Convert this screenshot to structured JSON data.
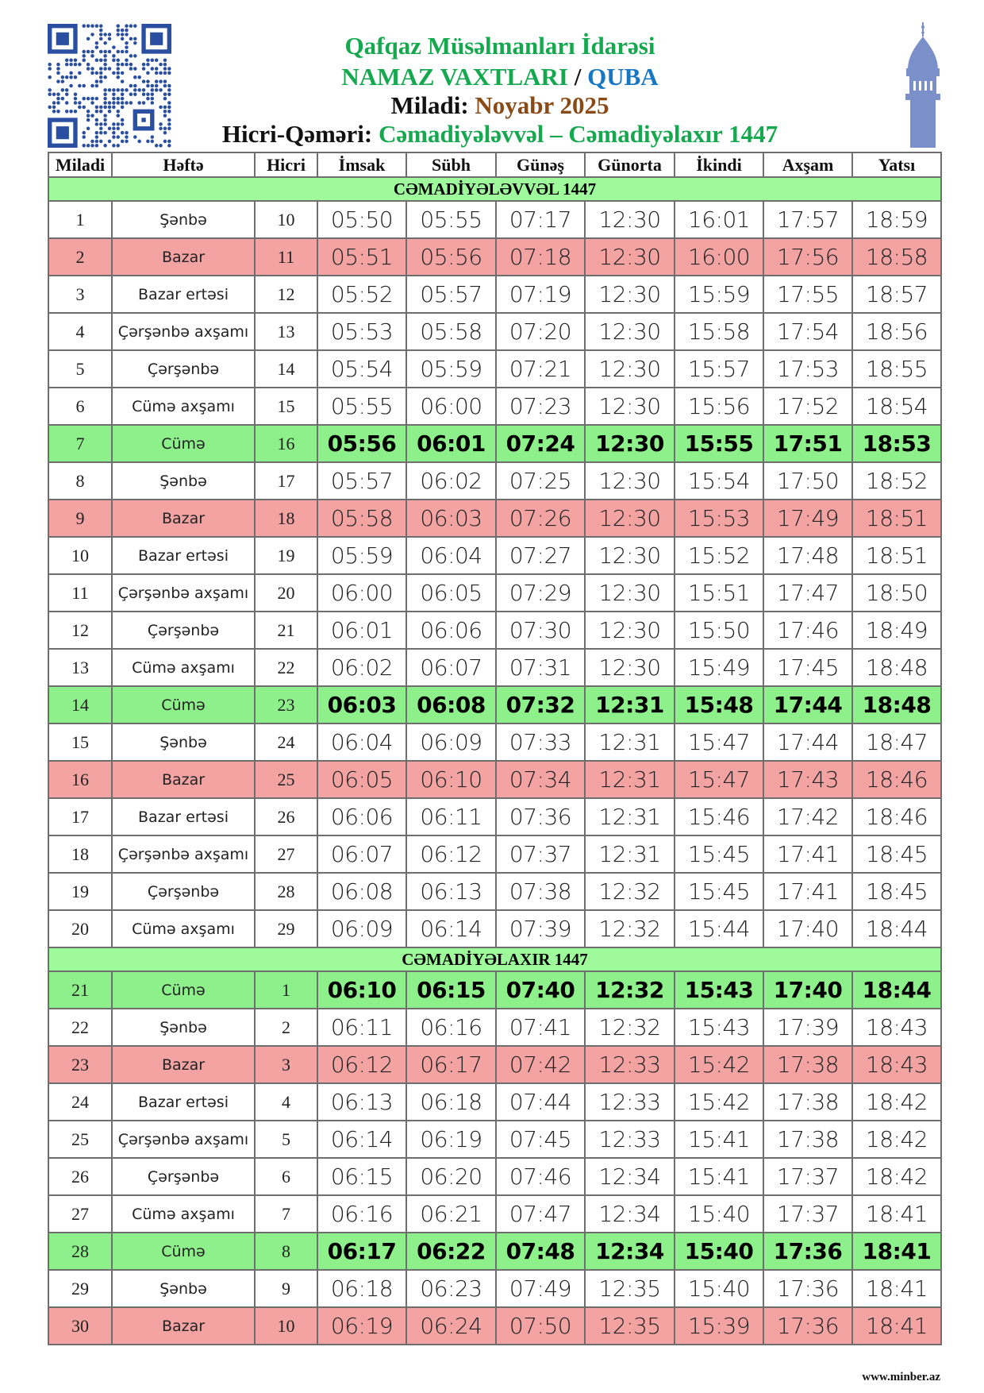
{
  "header": {
    "org": "Qafqaz Müsəlmanları İdarəsi",
    "title": "NAMAZ VAXTLARI",
    "separator": "/",
    "city": "QUBA",
    "miladi_label": "Miladi:",
    "miladi_value": "Noyabr 2025",
    "hicri_label": "Hicri-Qəməri:",
    "hicri_value": "Cəmadiyələvvəl – Cəmadiyəlaxır 1447"
  },
  "colors": {
    "green_row": "#8ef08a",
    "red_row": "#f4a3a3",
    "section": "#9efa9a",
    "accent_green": "#15a84e",
    "accent_blue": "#1877c2",
    "accent_brown": "#8a4a16",
    "qr": "#2a4fa0",
    "minaret": "#7b8fc8"
  },
  "icons": {
    "qr": "qr-code-icon",
    "minaret": "minaret-icon"
  },
  "table": {
    "columns": [
      "Miladi",
      "Həftə",
      "Hicri",
      "İmsak",
      "Sübh",
      "Günəş",
      "Günorta",
      "İkindi",
      "Axşam",
      "Yatsı"
    ],
    "sections": [
      {
        "title": "CƏMADİYƏLƏVVƏL 1447",
        "rows": [
          {
            "cells": [
              "1",
              "Şənbə",
              "10",
              "05:50",
              "05:55",
              "07:17",
              "12:30",
              "16:01",
              "17:57",
              "18:59"
            ],
            "highlight": ""
          },
          {
            "cells": [
              "2",
              "Bazar",
              "11",
              "05:51",
              "05:56",
              "07:18",
              "12:30",
              "16:00",
              "17:56",
              "18:58"
            ],
            "highlight": "sunday"
          },
          {
            "cells": [
              "3",
              "Bazar ertəsi",
              "12",
              "05:52",
              "05:57",
              "07:19",
              "12:30",
              "15:59",
              "17:55",
              "18:57"
            ],
            "highlight": ""
          },
          {
            "cells": [
              "4",
              "Çərşənbə axşamı",
              "13",
              "05:53",
              "05:58",
              "07:20",
              "12:30",
              "15:58",
              "17:54",
              "18:56"
            ],
            "highlight": ""
          },
          {
            "cells": [
              "5",
              "Çərşənbə",
              "14",
              "05:54",
              "05:59",
              "07:21",
              "12:30",
              "15:57",
              "17:53",
              "18:55"
            ],
            "highlight": ""
          },
          {
            "cells": [
              "6",
              "Cümə axşamı",
              "15",
              "05:55",
              "06:00",
              "07:23",
              "12:30",
              "15:56",
              "17:52",
              "18:54"
            ],
            "highlight": ""
          },
          {
            "cells": [
              "7",
              "Cümə",
              "16",
              "05:56",
              "06:01",
              "07:24",
              "12:30",
              "15:55",
              "17:51",
              "18:53"
            ],
            "highlight": "friday"
          },
          {
            "cells": [
              "8",
              "Şənbə",
              "17",
              "05:57",
              "06:02",
              "07:25",
              "12:30",
              "15:54",
              "17:50",
              "18:52"
            ],
            "highlight": ""
          },
          {
            "cells": [
              "9",
              "Bazar",
              "18",
              "05:58",
              "06:03",
              "07:26",
              "12:30",
              "15:53",
              "17:49",
              "18:51"
            ],
            "highlight": "sunday"
          },
          {
            "cells": [
              "10",
              "Bazar ertəsi",
              "19",
              "05:59",
              "06:04",
              "07:27",
              "12:30",
              "15:52",
              "17:48",
              "18:51"
            ],
            "highlight": ""
          },
          {
            "cells": [
              "11",
              "Çərşənbə axşamı",
              "20",
              "06:00",
              "06:05",
              "07:29",
              "12:30",
              "15:51",
              "17:47",
              "18:50"
            ],
            "highlight": ""
          },
          {
            "cells": [
              "12",
              "Çərşənbə",
              "21",
              "06:01",
              "06:06",
              "07:30",
              "12:30",
              "15:50",
              "17:46",
              "18:49"
            ],
            "highlight": ""
          },
          {
            "cells": [
              "13",
              "Cümə axşamı",
              "22",
              "06:02",
              "06:07",
              "07:31",
              "12:30",
              "15:49",
              "17:45",
              "18:48"
            ],
            "highlight": ""
          },
          {
            "cells": [
              "14",
              "Cümə",
              "23",
              "06:03",
              "06:08",
              "07:32",
              "12:31",
              "15:48",
              "17:44",
              "18:48"
            ],
            "highlight": "friday"
          },
          {
            "cells": [
              "15",
              "Şənbə",
              "24",
              "06:04",
              "06:09",
              "07:33",
              "12:31",
              "15:47",
              "17:44",
              "18:47"
            ],
            "highlight": ""
          },
          {
            "cells": [
              "16",
              "Bazar",
              "25",
              "06:05",
              "06:10",
              "07:34",
              "12:31",
              "15:47",
              "17:43",
              "18:46"
            ],
            "highlight": "sunday"
          },
          {
            "cells": [
              "17",
              "Bazar ertəsi",
              "26",
              "06:06",
              "06:11",
              "07:36",
              "12:31",
              "15:46",
              "17:42",
              "18:46"
            ],
            "highlight": ""
          },
          {
            "cells": [
              "18",
              "Çərşənbə axşamı",
              "27",
              "06:07",
              "06:12",
              "07:37",
              "12:31",
              "15:45",
              "17:41",
              "18:45"
            ],
            "highlight": ""
          },
          {
            "cells": [
              "19",
              "Çərşənbə",
              "28",
              "06:08",
              "06:13",
              "07:38",
              "12:32",
              "15:45",
              "17:41",
              "18:45"
            ],
            "highlight": ""
          },
          {
            "cells": [
              "20",
              "Cümə axşamı",
              "29",
              "06:09",
              "06:14",
              "07:39",
              "12:32",
              "15:44",
              "17:40",
              "18:44"
            ],
            "highlight": ""
          }
        ]
      },
      {
        "title": "CƏMADİYƏLAXIR 1447",
        "rows": [
          {
            "cells": [
              "21",
              "Cümə",
              "1",
              "06:10",
              "06:15",
              "07:40",
              "12:32",
              "15:43",
              "17:40",
              "18:44"
            ],
            "highlight": "friday"
          },
          {
            "cells": [
              "22",
              "Şənbə",
              "2",
              "06:11",
              "06:16",
              "07:41",
              "12:32",
              "15:43",
              "17:39",
              "18:43"
            ],
            "highlight": ""
          },
          {
            "cells": [
              "23",
              "Bazar",
              "3",
              "06:12",
              "06:17",
              "07:42",
              "12:33",
              "15:42",
              "17:38",
              "18:43"
            ],
            "highlight": "sunday"
          },
          {
            "cells": [
              "24",
              "Bazar ertəsi",
              "4",
              "06:13",
              "06:18",
              "07:44",
              "12:33",
              "15:42",
              "17:38",
              "18:42"
            ],
            "highlight": ""
          },
          {
            "cells": [
              "25",
              "Çərşənbə axşamı",
              "5",
              "06:14",
              "06:19",
              "07:45",
              "12:33",
              "15:41",
              "17:38",
              "18:42"
            ],
            "highlight": ""
          },
          {
            "cells": [
              "26",
              "Çərşənbə",
              "6",
              "06:15",
              "06:20",
              "07:46",
              "12:34",
              "15:41",
              "17:37",
              "18:42"
            ],
            "highlight": ""
          },
          {
            "cells": [
              "27",
              "Cümə axşamı",
              "7",
              "06:16",
              "06:21",
              "07:47",
              "12:34",
              "15:40",
              "17:37",
              "18:41"
            ],
            "highlight": ""
          },
          {
            "cells": [
              "28",
              "Cümə",
              "8",
              "06:17",
              "06:22",
              "07:48",
              "12:34",
              "15:40",
              "17:36",
              "18:41"
            ],
            "highlight": "friday"
          },
          {
            "cells": [
              "29",
              "Şənbə",
              "9",
              "06:18",
              "06:23",
              "07:49",
              "12:35",
              "15:40",
              "17:36",
              "18:41"
            ],
            "highlight": ""
          },
          {
            "cells": [
              "30",
              "Bazar",
              "10",
              "06:19",
              "06:24",
              "07:50",
              "12:35",
              "15:39",
              "17:36",
              "18:41"
            ],
            "highlight": "sunday"
          }
        ]
      }
    ]
  },
  "footer": {
    "site": "www.minber.az"
  }
}
